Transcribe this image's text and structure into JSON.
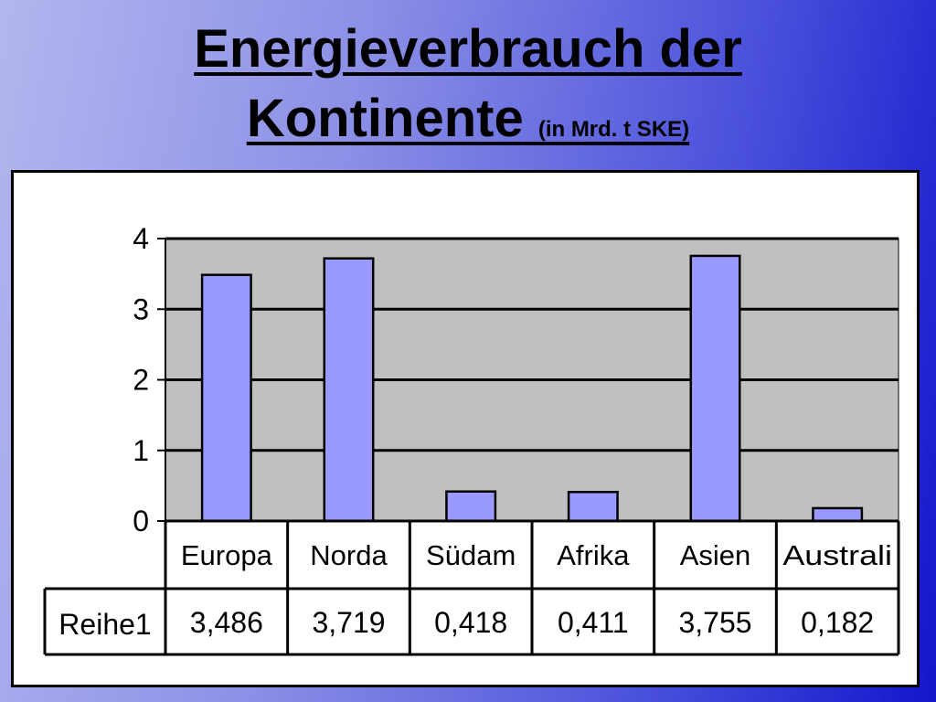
{
  "header": {
    "title_line1": "Energieverbrauch der",
    "title_line2": "Kontinente",
    "unit": "(in Mrd. t SKE)"
  },
  "chart_data": {
    "type": "bar",
    "categories": [
      "Europa",
      "Norda",
      "Südam",
      "Afrika",
      "Asien",
      "Australi"
    ],
    "series": [
      {
        "name": "Reihe1",
        "values": [
          3.486,
          3.719,
          0.418,
          0.411,
          3.755,
          0.182
        ],
        "labels": [
          "3,486",
          "3,719",
          "0,418",
          "0,411",
          "3,755",
          "0,182"
        ]
      }
    ],
    "yticks": [
      "0",
      "1",
      "2",
      "3",
      "4"
    ],
    "ylim": [
      0,
      4
    ],
    "grid": true,
    "legend": "none",
    "data_table": true,
    "colors": {
      "bar": "#9999ff",
      "plot_area": "#c0c0c0",
      "gridline": "#000000"
    }
  }
}
